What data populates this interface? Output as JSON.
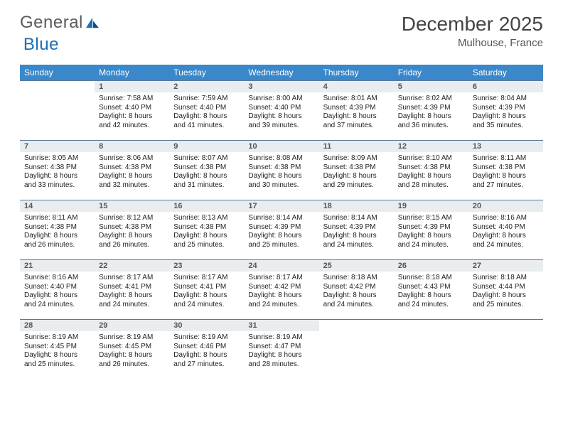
{
  "brand": {
    "part1": "General",
    "part2": "Blue"
  },
  "title": "December 2025",
  "location": "Mulhouse, France",
  "colors": {
    "header_bg": "#3a87c9",
    "header_fg": "#ffffff",
    "daybar_bg": "#e9edf0",
    "daybar_border": "#5a7a99",
    "text": "#333333",
    "logo_gray": "#5a5a5a",
    "logo_blue": "#1a6fb5"
  },
  "weekdays": [
    "Sunday",
    "Monday",
    "Tuesday",
    "Wednesday",
    "Thursday",
    "Friday",
    "Saturday"
  ],
  "weeks": [
    [
      {
        "n": "",
        "lines": []
      },
      {
        "n": "1",
        "lines": [
          "Sunrise: 7:58 AM",
          "Sunset: 4:40 PM",
          "Daylight: 8 hours",
          "and 42 minutes."
        ]
      },
      {
        "n": "2",
        "lines": [
          "Sunrise: 7:59 AM",
          "Sunset: 4:40 PM",
          "Daylight: 8 hours",
          "and 41 minutes."
        ]
      },
      {
        "n": "3",
        "lines": [
          "Sunrise: 8:00 AM",
          "Sunset: 4:40 PM",
          "Daylight: 8 hours",
          "and 39 minutes."
        ]
      },
      {
        "n": "4",
        "lines": [
          "Sunrise: 8:01 AM",
          "Sunset: 4:39 PM",
          "Daylight: 8 hours",
          "and 37 minutes."
        ]
      },
      {
        "n": "5",
        "lines": [
          "Sunrise: 8:02 AM",
          "Sunset: 4:39 PM",
          "Daylight: 8 hours",
          "and 36 minutes."
        ]
      },
      {
        "n": "6",
        "lines": [
          "Sunrise: 8:04 AM",
          "Sunset: 4:39 PM",
          "Daylight: 8 hours",
          "and 35 minutes."
        ]
      }
    ],
    [
      {
        "n": "7",
        "lines": [
          "Sunrise: 8:05 AM",
          "Sunset: 4:38 PM",
          "Daylight: 8 hours",
          "and 33 minutes."
        ]
      },
      {
        "n": "8",
        "lines": [
          "Sunrise: 8:06 AM",
          "Sunset: 4:38 PM",
          "Daylight: 8 hours",
          "and 32 minutes."
        ]
      },
      {
        "n": "9",
        "lines": [
          "Sunrise: 8:07 AM",
          "Sunset: 4:38 PM",
          "Daylight: 8 hours",
          "and 31 minutes."
        ]
      },
      {
        "n": "10",
        "lines": [
          "Sunrise: 8:08 AM",
          "Sunset: 4:38 PM",
          "Daylight: 8 hours",
          "and 30 minutes."
        ]
      },
      {
        "n": "11",
        "lines": [
          "Sunrise: 8:09 AM",
          "Sunset: 4:38 PM",
          "Daylight: 8 hours",
          "and 29 minutes."
        ]
      },
      {
        "n": "12",
        "lines": [
          "Sunrise: 8:10 AM",
          "Sunset: 4:38 PM",
          "Daylight: 8 hours",
          "and 28 minutes."
        ]
      },
      {
        "n": "13",
        "lines": [
          "Sunrise: 8:11 AM",
          "Sunset: 4:38 PM",
          "Daylight: 8 hours",
          "and 27 minutes."
        ]
      }
    ],
    [
      {
        "n": "14",
        "lines": [
          "Sunrise: 8:11 AM",
          "Sunset: 4:38 PM",
          "Daylight: 8 hours",
          "and 26 minutes."
        ]
      },
      {
        "n": "15",
        "lines": [
          "Sunrise: 8:12 AM",
          "Sunset: 4:38 PM",
          "Daylight: 8 hours",
          "and 26 minutes."
        ]
      },
      {
        "n": "16",
        "lines": [
          "Sunrise: 8:13 AM",
          "Sunset: 4:38 PM",
          "Daylight: 8 hours",
          "and 25 minutes."
        ]
      },
      {
        "n": "17",
        "lines": [
          "Sunrise: 8:14 AM",
          "Sunset: 4:39 PM",
          "Daylight: 8 hours",
          "and 25 minutes."
        ]
      },
      {
        "n": "18",
        "lines": [
          "Sunrise: 8:14 AM",
          "Sunset: 4:39 PM",
          "Daylight: 8 hours",
          "and 24 minutes."
        ]
      },
      {
        "n": "19",
        "lines": [
          "Sunrise: 8:15 AM",
          "Sunset: 4:39 PM",
          "Daylight: 8 hours",
          "and 24 minutes."
        ]
      },
      {
        "n": "20",
        "lines": [
          "Sunrise: 8:16 AM",
          "Sunset: 4:40 PM",
          "Daylight: 8 hours",
          "and 24 minutes."
        ]
      }
    ],
    [
      {
        "n": "21",
        "lines": [
          "Sunrise: 8:16 AM",
          "Sunset: 4:40 PM",
          "Daylight: 8 hours",
          "and 24 minutes."
        ]
      },
      {
        "n": "22",
        "lines": [
          "Sunrise: 8:17 AM",
          "Sunset: 4:41 PM",
          "Daylight: 8 hours",
          "and 24 minutes."
        ]
      },
      {
        "n": "23",
        "lines": [
          "Sunrise: 8:17 AM",
          "Sunset: 4:41 PM",
          "Daylight: 8 hours",
          "and 24 minutes."
        ]
      },
      {
        "n": "24",
        "lines": [
          "Sunrise: 8:17 AM",
          "Sunset: 4:42 PM",
          "Daylight: 8 hours",
          "and 24 minutes."
        ]
      },
      {
        "n": "25",
        "lines": [
          "Sunrise: 8:18 AM",
          "Sunset: 4:42 PM",
          "Daylight: 8 hours",
          "and 24 minutes."
        ]
      },
      {
        "n": "26",
        "lines": [
          "Sunrise: 8:18 AM",
          "Sunset: 4:43 PM",
          "Daylight: 8 hours",
          "and 24 minutes."
        ]
      },
      {
        "n": "27",
        "lines": [
          "Sunrise: 8:18 AM",
          "Sunset: 4:44 PM",
          "Daylight: 8 hours",
          "and 25 minutes."
        ]
      }
    ],
    [
      {
        "n": "28",
        "lines": [
          "Sunrise: 8:19 AM",
          "Sunset: 4:45 PM",
          "Daylight: 8 hours",
          "and 25 minutes."
        ]
      },
      {
        "n": "29",
        "lines": [
          "Sunrise: 8:19 AM",
          "Sunset: 4:45 PM",
          "Daylight: 8 hours",
          "and 26 minutes."
        ]
      },
      {
        "n": "30",
        "lines": [
          "Sunrise: 8:19 AM",
          "Sunset: 4:46 PM",
          "Daylight: 8 hours",
          "and 27 minutes."
        ]
      },
      {
        "n": "31",
        "lines": [
          "Sunrise: 8:19 AM",
          "Sunset: 4:47 PM",
          "Daylight: 8 hours",
          "and 28 minutes."
        ]
      },
      {
        "n": "",
        "lines": []
      },
      {
        "n": "",
        "lines": []
      },
      {
        "n": "",
        "lines": []
      }
    ]
  ]
}
